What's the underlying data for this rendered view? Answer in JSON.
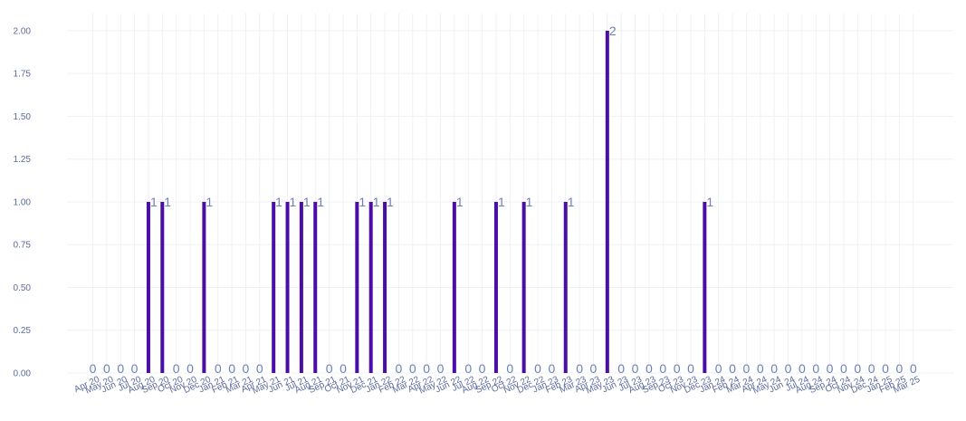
{
  "chart_data": {
    "type": "bar",
    "title": "",
    "xlabel": "",
    "ylabel": "",
    "ylim": [
      0,
      2.1
    ],
    "yticks": [
      "0.00",
      "0.25",
      "0.50",
      "0.75",
      "1.00",
      "1.25",
      "1.50",
      "1.75",
      "2.00"
    ],
    "grid": true,
    "colors": {
      "bar": "#4a0ea6",
      "label": "#6f7fb5",
      "tick": "#5b6aa0",
      "grid": "#eef0f4"
    },
    "categories": [
      "Apr 20",
      "May 20",
      "Jun 20",
      "Jul 20",
      "Aug 20",
      "Sep 20",
      "Oct 20",
      "Nov 20",
      "Dec 20",
      "Jan 21",
      "Feb 21",
      "Mar 21",
      "Apr 21",
      "May 21",
      "Jun 21",
      "Jul 21",
      "Aug 21",
      "Sep 21",
      "Oct 21",
      "Nov 21",
      "Dec 21",
      "Jan 22",
      "Feb 22",
      "Mar 22",
      "Apr 22",
      "May 22",
      "Jun 22",
      "Jul 22",
      "Aug 22",
      "Sep 22",
      "Oct 22",
      "Nov 22",
      "Dec 22",
      "Jan 23",
      "Feb 23",
      "Mar 23",
      "Apr 23",
      "May 23",
      "Jun 23",
      "Jul 23",
      "Aug 23",
      "Sep 23",
      "Oct 23",
      "Nov 23",
      "Dec 23",
      "Jan 24",
      "Feb 24",
      "Mar 24",
      "Apr 24",
      "May 24",
      "Jun 24",
      "Jul 24",
      "Aug 24",
      "Sep 24",
      "Oct 24",
      "Nov 24",
      "Dec 24",
      "Jan 25",
      "Feb 25",
      "Mar 25"
    ],
    "values": [
      0,
      0,
      0,
      0,
      1,
      1,
      0,
      0,
      1,
      0,
      0,
      0,
      0,
      1,
      1,
      1,
      1,
      0,
      0,
      1,
      1,
      1,
      0,
      0,
      0,
      0,
      1,
      0,
      0,
      1,
      0,
      1,
      0,
      0,
      1,
      0,
      0,
      2,
      0,
      0,
      0,
      0,
      0,
      0,
      1,
      0,
      0,
      0,
      0,
      0,
      0,
      0,
      0,
      0,
      0,
      0,
      0,
      0,
      0,
      0
    ]
  }
}
